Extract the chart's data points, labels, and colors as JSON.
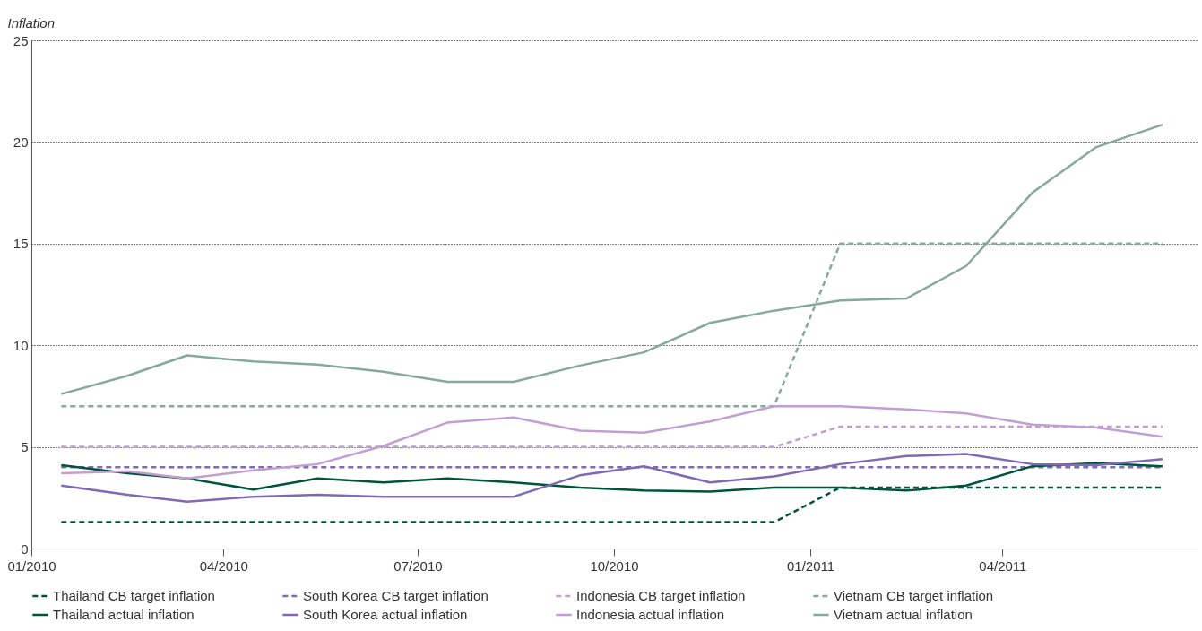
{
  "chart_data": {
    "type": "line",
    "ylabel": "Inflation",
    "x": [
      "2010-01-15",
      "2010-02-15",
      "2010-03-15",
      "2010-04-15",
      "2010-05-15",
      "2010-06-15",
      "2010-07-15",
      "2010-08-15",
      "2010-09-15",
      "2010-10-15",
      "2010-11-15",
      "2010-12-15",
      "2011-01-15",
      "2011-02-15",
      "2011-03-15",
      "2011-04-15",
      "2011-05-15",
      "2011-06-15"
    ],
    "xlim": [
      "2010-01-01",
      "2011-07-01"
    ],
    "xticks": [
      {
        "value": "2010-01-01",
        "label": "01/2010"
      },
      {
        "value": "2010-04-01",
        "label": "04/2010"
      },
      {
        "value": "2010-07-01",
        "label": "07/2010"
      },
      {
        "value": "2010-10-01",
        "label": "10/2010"
      },
      {
        "value": "2011-01-01",
        "label": "01/2011"
      },
      {
        "value": "2011-04-01",
        "label": "04/2011"
      }
    ],
    "ylim": [
      0,
      25
    ],
    "yticks": [
      0,
      5,
      10,
      15,
      20,
      25
    ],
    "grid": "y",
    "legend": "bottom",
    "marker": "none",
    "series": [
      {
        "name": "Thailand CB target inflation",
        "color": "#00543c",
        "line_style": "dashed",
        "values": [
          1.3,
          1.3,
          1.3,
          1.3,
          1.3,
          1.3,
          1.3,
          1.3,
          1.3,
          1.3,
          1.3,
          1.3,
          3,
          3,
          3,
          3,
          3,
          3
        ]
      },
      {
        "name": "South Korea CB target inflation",
        "color": "#7f6ab4",
        "line_style": "dashed",
        "values": [
          4,
          4,
          4,
          4,
          4,
          4,
          4,
          4,
          4,
          4,
          4,
          4,
          4,
          4,
          4,
          4,
          4,
          4
        ]
      },
      {
        "name": "Indonesia CB target inflation",
        "color": "#c39fd1",
        "line_style": "dashed",
        "values": [
          5,
          5,
          5,
          5,
          5,
          5,
          5,
          5,
          5,
          5,
          5,
          5,
          6,
          6,
          6,
          6,
          6,
          6
        ]
      },
      {
        "name": "Vietnam CB target inflation",
        "color": "#86a99a",
        "line_style": "dashed",
        "values": [
          7,
          7,
          7,
          7,
          7,
          7,
          7,
          7,
          7,
          7,
          7,
          7,
          15,
          15,
          15,
          15,
          15,
          15
        ]
      },
      {
        "name": "Thailand actual inflation",
        "color": "#00543c",
        "line_style": "solid",
        "values": [
          4.1,
          3.7,
          3.45,
          2.9,
          3.45,
          3.25,
          3.45,
          3.25,
          3.0,
          2.85,
          2.8,
          3.0,
          3.0,
          2.85,
          3.1,
          4.05,
          4.2,
          4.05
        ]
      },
      {
        "name": "South Korea actual inflation",
        "color": "#7f6ab4",
        "line_style": "solid",
        "values": [
          3.1,
          2.65,
          2.3,
          2.55,
          2.65,
          2.55,
          2.55,
          2.55,
          3.6,
          4.05,
          3.25,
          3.55,
          4.15,
          4.55,
          4.65,
          4.15,
          4.1,
          4.4
        ]
      },
      {
        "name": "Indonesia actual inflation",
        "color": "#c39fd1",
        "line_style": "solid",
        "values": [
          3.7,
          3.8,
          3.45,
          3.85,
          4.15,
          5.05,
          6.2,
          6.45,
          5.8,
          5.7,
          6.25,
          7.0,
          7.0,
          6.85,
          6.65,
          6.1,
          5.95,
          5.5
        ]
      },
      {
        "name": "Vietnam actual inflation",
        "color": "#86a99a",
        "line_style": "solid",
        "values": [
          7.6,
          8.5,
          9.5,
          9.2,
          9.05,
          8.7,
          8.2,
          8.2,
          9.0,
          9.65,
          11.1,
          11.7,
          12.2,
          12.3,
          13.9,
          17.5,
          19.75,
          20.85
        ]
      }
    ]
  }
}
